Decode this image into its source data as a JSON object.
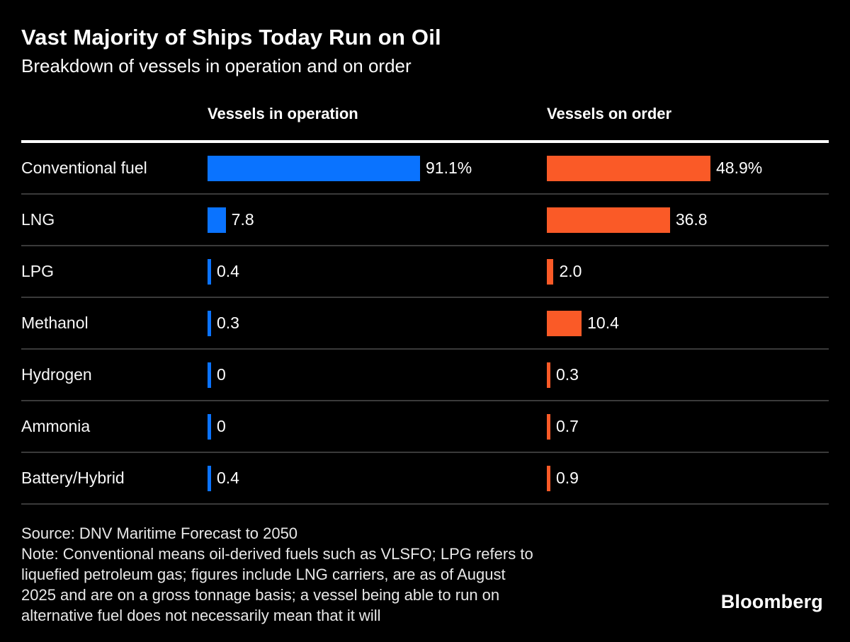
{
  "header": {
    "title": "Vast Majority of Ships Today Run on Oil",
    "subtitle": "Breakdown of vessels in operation and on order"
  },
  "chart_data": {
    "type": "bar",
    "orientation": "horizontal",
    "title": "Vast Majority of Ships Today Run on Oil",
    "subtitle": "Breakdown of vessels in operation and on order",
    "unit": "percent",
    "grid": "row-dividers-only",
    "legend_position": "column-headers-top",
    "categories": [
      "Conventional fuel",
      "LNG",
      "LPG",
      "Methanol",
      "Hydrogen",
      "Ammonia",
      "Battery/Hybrid"
    ],
    "series": [
      {
        "name": "Vessels in operation",
        "color": "#0a73ff",
        "values": [
          91.1,
          7.8,
          0.4,
          0.3,
          0,
          0,
          0.4
        ],
        "labels": [
          "91.1%",
          "7.8",
          "0.4",
          "0.3",
          "0",
          "0",
          "0.4"
        ]
      },
      {
        "name": "Vessels on order",
        "color": "#fa5a27",
        "values": [
          48.9,
          36.8,
          2.0,
          10.4,
          0.3,
          0.7,
          0.9
        ],
        "labels": [
          "48.9%",
          "36.8",
          "2.0",
          "10.4",
          "0.3",
          "0.7",
          "0.9"
        ]
      }
    ]
  },
  "footer": {
    "source": "Source: DNV Maritime Forecast to 2050",
    "note_lines": [
      "Note: Conventional means oil-derived fuels such as VLSFO; LPG refers to",
      "liquefied petroleum gas; figures include LNG carriers, are as of August",
      "2025 and are on a gross tonnage basis; a vessel being able to run on",
      "alternative fuel does not necessarily mean that it will"
    ],
    "brand": "Bloomberg"
  }
}
